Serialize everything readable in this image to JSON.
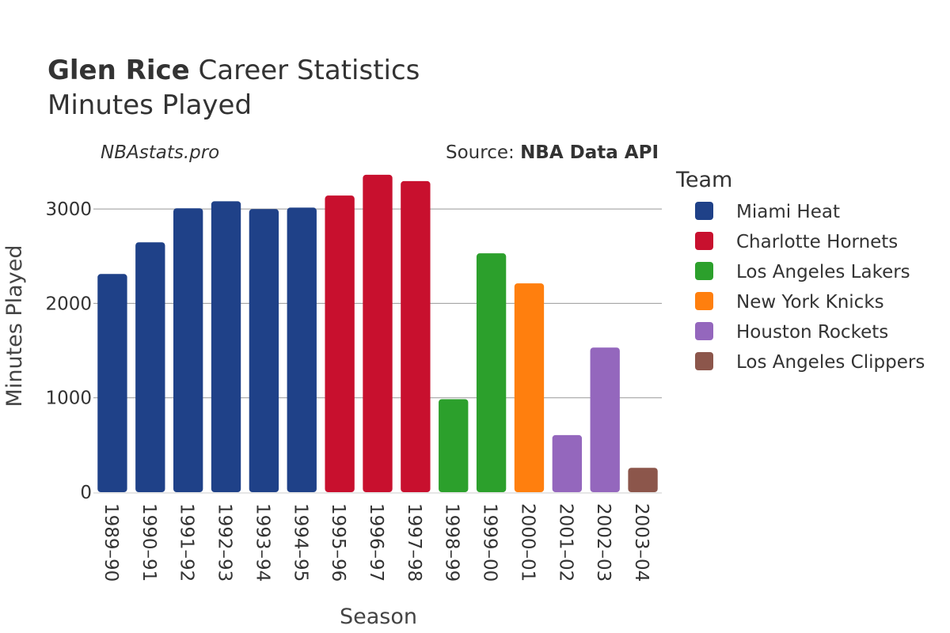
{
  "header": {
    "title_bold": "Glen Rice",
    "title_rest": "Career Statistics",
    "subtitle": "Minutes Played"
  },
  "watermark": "NBAstats.pro",
  "source": {
    "prefix": "Source: ",
    "name": "NBA Data API"
  },
  "chart_data": {
    "type": "bar",
    "title": "Glen Rice Career Statistics",
    "subtitle": "Minutes Played",
    "xlabel": "Season",
    "ylabel": "Minutes Played",
    "ylim": [
      0,
      3400
    ],
    "yticks": [
      0,
      1000,
      2000,
      3000
    ],
    "grid": true,
    "legend_position": "right",
    "legend_title": "Team",
    "categories": [
      "1989–90",
      "1990–91",
      "1991–92",
      "1992–93",
      "1993–94",
      "1994–95",
      "1995–96",
      "1996–97",
      "1997–98",
      "1998–99",
      "1999–00",
      "2000–01",
      "2001–02",
      "2002–03",
      "2003–04"
    ],
    "values": [
      2311,
      2647,
      3007,
      3082,
      2999,
      3014,
      3142,
      3362,
      3295,
      985,
      2530,
      2212,
      605,
      1532,
      258
    ],
    "teams": [
      "Miami Heat",
      "Miami Heat",
      "Miami Heat",
      "Miami Heat",
      "Miami Heat",
      "Miami Heat",
      "Charlotte Hornets",
      "Charlotte Hornets",
      "Charlotte Hornets",
      "Los Angeles Lakers",
      "Los Angeles Lakers",
      "New York Knicks",
      "Houston Rockets",
      "Houston Rockets",
      "Los Angeles Clippers"
    ],
    "legend": [
      {
        "name": "Miami Heat",
        "color": "#1f4188"
      },
      {
        "name": "Charlotte Hornets",
        "color": "#c8102e"
      },
      {
        "name": "Los Angeles Lakers",
        "color": "#2ca02c"
      },
      {
        "name": "New York Knicks",
        "color": "#ff7f0e"
      },
      {
        "name": "Houston Rockets",
        "color": "#9467bd"
      },
      {
        "name": "Los Angeles Clippers",
        "color": "#8c564b"
      }
    ]
  }
}
